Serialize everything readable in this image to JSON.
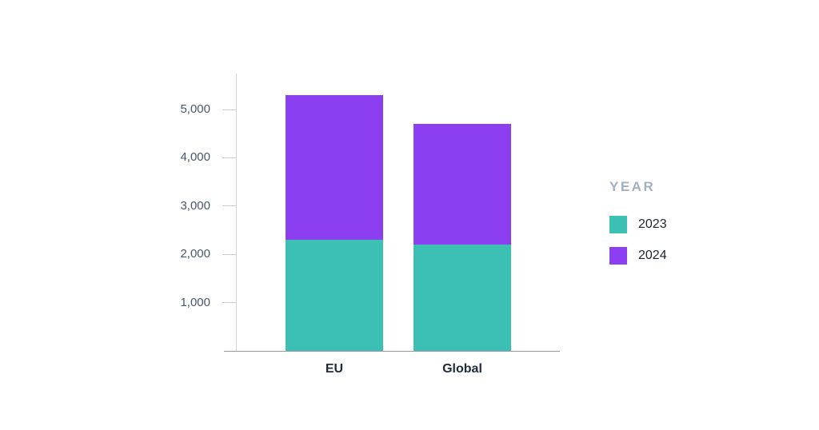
{
  "chart_data": {
    "type": "bar",
    "stacked": true,
    "title": "",
    "xlabel": "",
    "ylabel": "",
    "categories": [
      "EU",
      "Global"
    ],
    "series": [
      {
        "name": "2023",
        "color": "#3CC0B4",
        "values": [
          2300,
          2200
        ]
      },
      {
        "name": "2024",
        "color": "#8C3FF0",
        "values": [
          3000,
          2500
        ]
      }
    ],
    "yticks": {
      "values": [
        1000,
        2000,
        3000,
        4000,
        5000
      ],
      "labels": [
        "1,000",
        "2,000",
        "3,000",
        "4,000",
        "5,000"
      ]
    },
    "ylim": [
      0,
      5750
    ],
    "grid": false,
    "legend": {
      "title": "YEAR",
      "position": "right"
    },
    "colors": {
      "y_axis_line": "#cfd3d7",
      "x_axis_line": "#97999c",
      "tick_text": "#48566b",
      "category_text": "#202b3d",
      "legend_title_text": "#a3b0c0",
      "legend_label_text": "#1f2430",
      "background": "#ffffff"
    }
  }
}
